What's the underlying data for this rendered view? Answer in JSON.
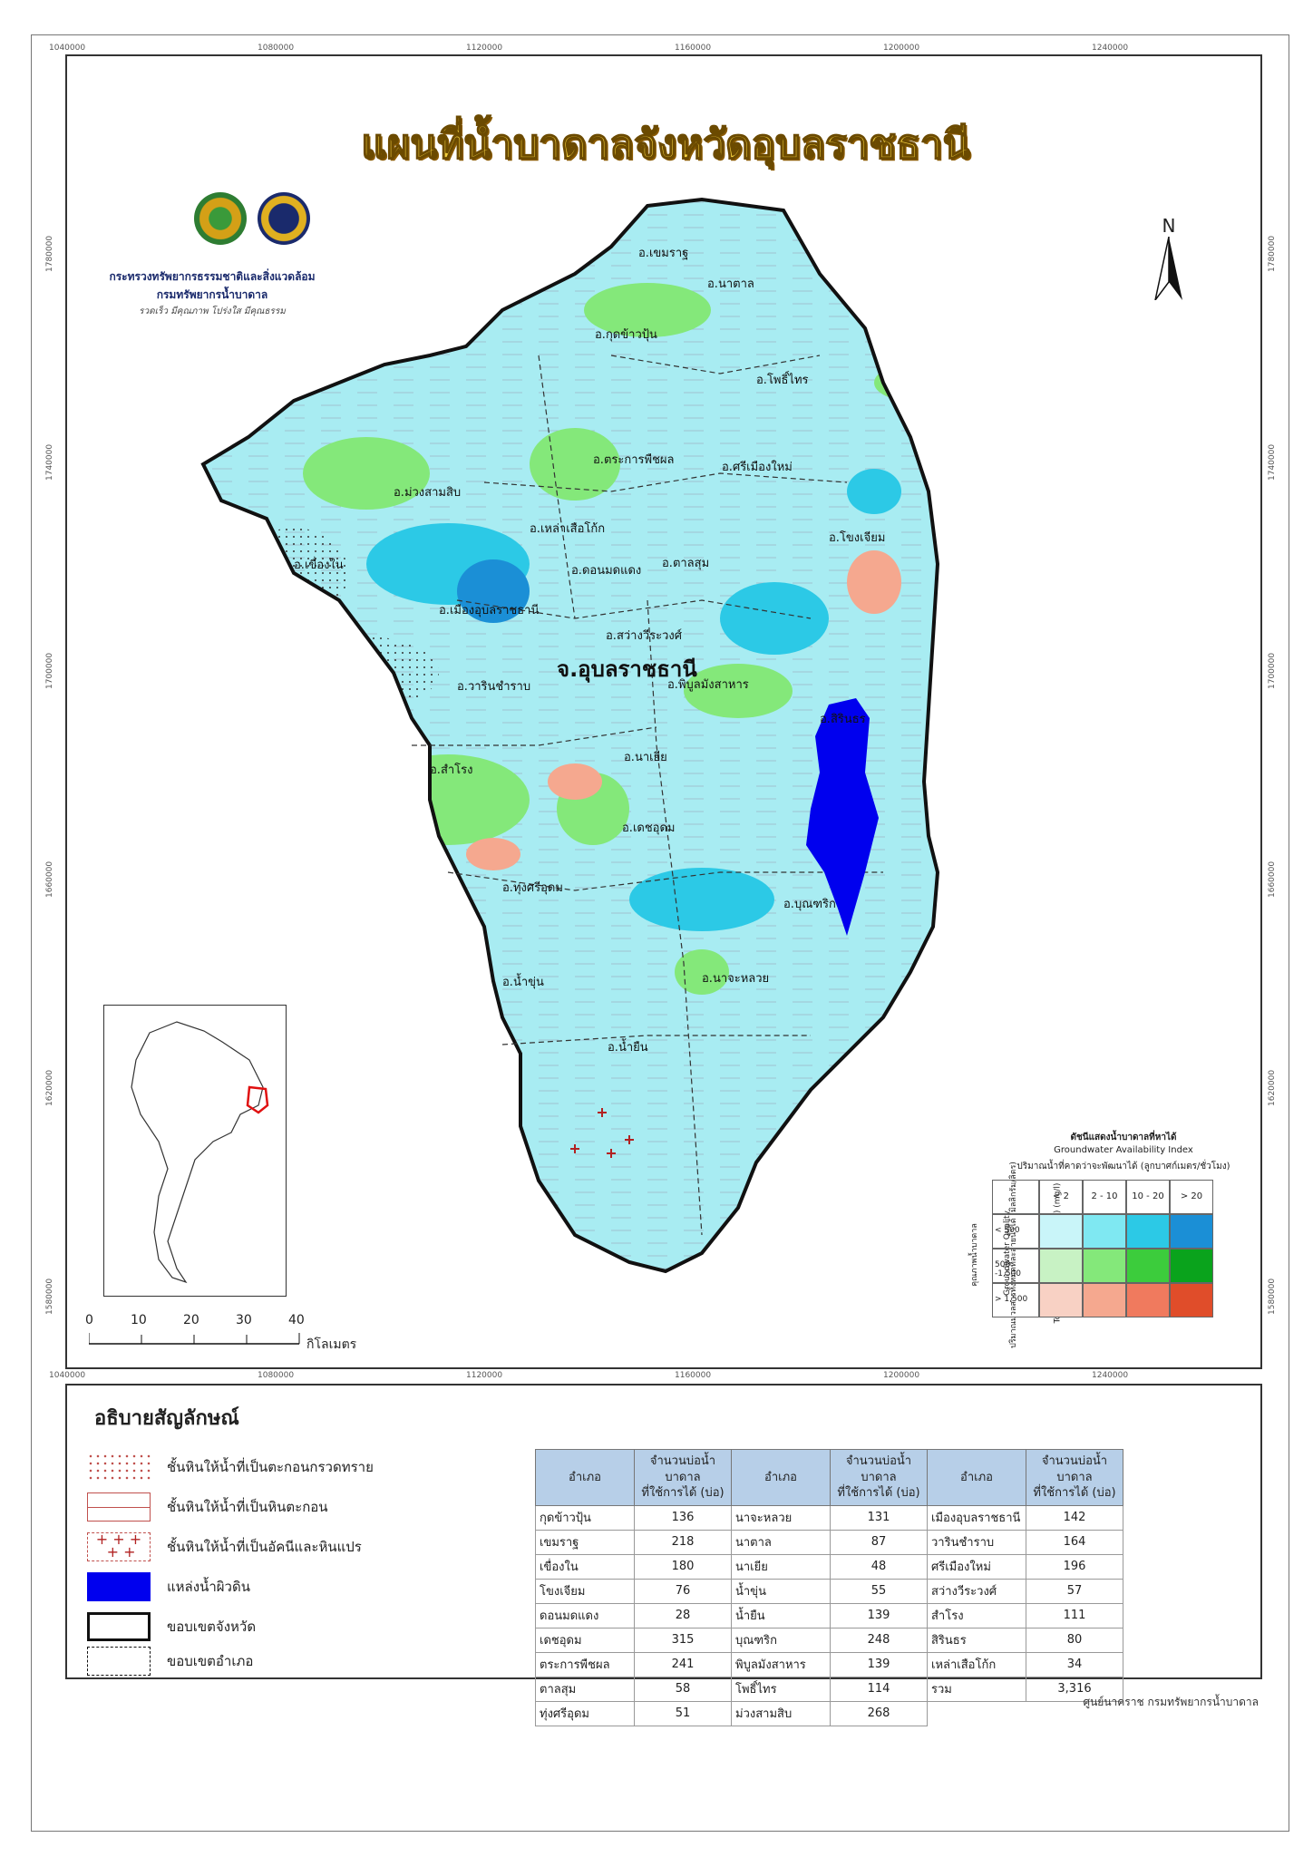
{
  "title": "แผนที่น้ำบาดาลจังหวัดอุบลราชธานี",
  "organization": {
    "ministry": "กระทรวงทรัพยากรธรรมชาติและสิ่งแวดล้อม",
    "department": "กรมทรัพยากรน้ำบาดาล",
    "motto": "รวดเร็ว มีคุณภาพ โปร่งใส มีคุณธรรม"
  },
  "north_label": "N",
  "coordinates": {
    "x_ticks": [
      "1040000",
      "1080000",
      "1120000",
      "1160000",
      "1200000",
      "1240000"
    ],
    "y_ticks": [
      "1780000",
      "1740000",
      "1700000",
      "1660000",
      "1620000",
      "1580000"
    ]
  },
  "province_label": "จ.อุบลราชธานี",
  "district_labels": [
    "อ.เขมราฐ",
    "อ.นาตาล",
    "อ.กุดข้าวปุ้น",
    "อ.โพธิ์ไทร",
    "อ.ตระการพืชผล",
    "อ.ศรีเมืองใหม่",
    "อ.ม่วงสามสิบ",
    "อ.เหล่าเสือโก้ก",
    "อ.โขงเจียม",
    "อ.เขื่องใน",
    "อ.ดอนมดแดง",
    "อ.ตาลสุม",
    "อ.เมืองอุบลราชธานี",
    "อ.สว่างวีระวงศ์",
    "อ.วารินชำราบ",
    "อ.พิบูลมังสาหาร",
    "อ.สิรินธร",
    "อ.สำโรง",
    "อ.นาเยีย",
    "อ.เดชอุดม",
    "อ.ทุ่งศรีอุดม",
    "อ.บุณฑริก",
    "อ.น้ำขุ่น",
    "อ.นาจะหลวย",
    "อ.น้ำยืน"
  ],
  "scale": {
    "ticks": [
      "0",
      "10",
      "20",
      "30",
      "40"
    ],
    "unit": "กิโลเมตร"
  },
  "gw_index": {
    "title_th": "ดัชนีแสดงน้ำบาดาลที่หาได้",
    "title_en": "Groundwater Availability Index",
    "yield_label": "ปริมาณน้ำที่คาดว่าจะพัฒนาได้ (ลูกบาศก์เมตร/ชั่วโมง)",
    "quality_label": "Groundwater Quality",
    "tds_label": "Total Dissolved Solids (TDS) (mg/l)",
    "tds_label_th": "ปริมาณมวลสารทั้งหมดที่ละลายน้ำได้ (มิลลิกรัม/ลิตร)",
    "quality_th": "คุณภาพน้ำบาดาล",
    "yield_classes": [
      "< 2",
      "2 - 10",
      "10 - 20",
      "> 20"
    ],
    "tds_classes": [
      "< 500",
      "500 -1,500",
      "> 1,500"
    ],
    "colors": [
      [
        "#c9f5f9",
        "#7fe8f2",
        "#2cc9e6",
        "#1b8fd6"
      ],
      [
        "#c8f2c4",
        "#84e87a",
        "#3ccc3c",
        "#0aa31c"
      ],
      [
        "#f8d1c4",
        "#f5a88f",
        "#f07a5e",
        "#e04d2a"
      ]
    ]
  },
  "legend": {
    "heading": "อธิบายสัญลักษณ์",
    "items": [
      "ชั้นหินให้น้ำที่เป็นตะกอนกรวดทราย",
      "ชั้นหินให้น้ำที่เป็นหินตะกอน",
      "ชั้นหินให้น้ำที่เป็นอัคนีและหินแปร",
      "แหล่งน้ำผิวดิน",
      "ขอบเขตจังหวัด",
      "ขอบเขตอำเภอ"
    ]
  },
  "wells_table": {
    "col_district": "อำเภอ",
    "col_count_1": "จำนวนบ่อน้ำบาดาล",
    "col_count_2": "ที่ใช้การได้ (บ่อ)",
    "rows": [
      [
        [
          "กุดข้าวปุ้น",
          "136"
        ],
        [
          "นาจะหลวย",
          "131"
        ],
        [
          "เมืองอุบลราชธานี",
          "142"
        ]
      ],
      [
        [
          "เขมราฐ",
          "218"
        ],
        [
          "นาตาล",
          "87"
        ],
        [
          "วารินชำราบ",
          "164"
        ]
      ],
      [
        [
          "เขื่องใน",
          "180"
        ],
        [
          "นาเยีย",
          "48"
        ],
        [
          "ศรีเมืองใหม่",
          "196"
        ]
      ],
      [
        [
          "โขงเจียม",
          "76"
        ],
        [
          "น้ำขุ่น",
          "55"
        ],
        [
          "สว่างวีระวงศ์",
          "57"
        ]
      ],
      [
        [
          "ดอนมดแดง",
          "28"
        ],
        [
          "น้ำยืน",
          "139"
        ],
        [
          "สำโรง",
          "111"
        ]
      ],
      [
        [
          "เดชอุดม",
          "315"
        ],
        [
          "บุณฑริก",
          "248"
        ],
        [
          "สิรินธร",
          "80"
        ]
      ],
      [
        [
          "ตระการพืชผล",
          "241"
        ],
        [
          "พิบูลมังสาหาร",
          "139"
        ],
        [
          "เหล่าเสือโก้ก",
          "34"
        ]
      ],
      [
        [
          "ตาลสุม",
          "58"
        ],
        [
          "โพธิ์ไทร",
          "114"
        ],
        [
          "รวม",
          "3,316"
        ]
      ],
      [
        [
          "ทุ่งศรีอุดม",
          "51"
        ],
        [
          "ม่วงสามสิบ",
          "268"
        ],
        [
          "",
          ""
        ]
      ]
    ]
  },
  "credit": "ศูนย์นาคราช กรมทรัพยากรน้ำบาดาล"
}
